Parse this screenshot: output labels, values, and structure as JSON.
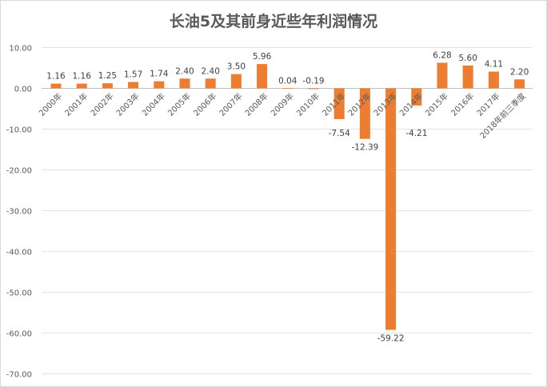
{
  "chart_data": {
    "type": "bar",
    "title": "长油5及其前身近些年利润情况",
    "xlabel": "",
    "ylabel": "",
    "ylim": [
      -70,
      10
    ],
    "yticks": [
      "10.00",
      "0.00",
      "-10.00",
      "-20.00",
      "-30.00",
      "-40.00",
      "-50.00",
      "-60.00",
      "-70.00"
    ],
    "ytick_values": [
      10,
      0,
      -10,
      -20,
      -30,
      -40,
      -50,
      -60,
      -70
    ],
    "grid": true,
    "bar_color": "#ed7d31",
    "categories": [
      "2000年",
      "2001年",
      "2002年",
      "2003年",
      "2004年",
      "2005年",
      "2006年",
      "2007年",
      "2008年",
      "2009年",
      "2010年",
      "2011年",
      "2012年",
      "2013年",
      "2014年",
      "2015年",
      "2016年",
      "2017年",
      "2018年前三季度"
    ],
    "values": [
      1.16,
      1.16,
      1.25,
      1.57,
      1.74,
      2.4,
      2.4,
      3.5,
      5.96,
      0.04,
      -0.19,
      -7.54,
      -12.39,
      -59.22,
      -4.21,
      6.28,
      5.6,
      4.11,
      2.2
    ],
    "labels": [
      "1.16",
      "1.16",
      "1.25",
      "1.57",
      "1.74",
      "2.40",
      "2.40",
      "3.50",
      "5.96",
      "0.04",
      "-0.19",
      "-7.54",
      "-12.39",
      "-59.22",
      "-4.21",
      "6.28",
      "5.60",
      "4.11",
      "2.20"
    ]
  }
}
